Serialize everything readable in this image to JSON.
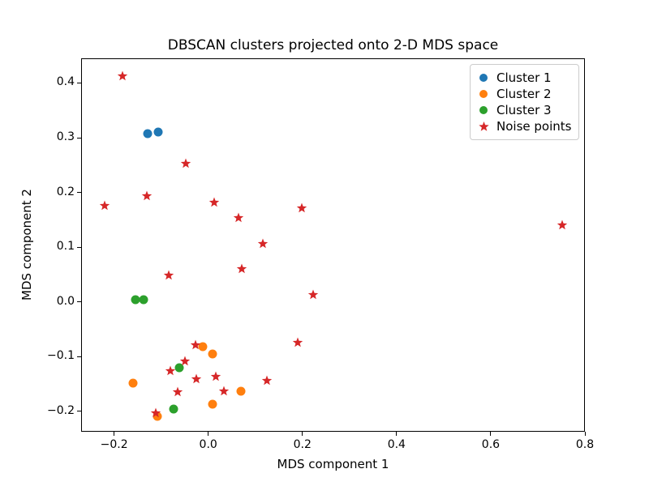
{
  "chart_data": {
    "type": "scatter",
    "title": "DBSCAN clusters projected onto 2-D MDS space",
    "xlabel": "MDS component 1",
    "ylabel": "MDS component 2",
    "xlim": [
      -0.27,
      0.8
    ],
    "ylim": [
      -0.237,
      0.445
    ],
    "xticks": [
      -0.2,
      0.0,
      0.2,
      0.4,
      0.6,
      0.8
    ],
    "yticks": [
      -0.2,
      -0.1,
      0.0,
      0.1,
      0.2,
      0.3,
      0.4
    ],
    "grid": false,
    "legend_position": "upper right",
    "series": [
      {
        "name": "Cluster 1",
        "marker": "circle",
        "color": "#1f77b4",
        "points": [
          [
            -0.131,
            0.309
          ],
          [
            -0.108,
            0.312
          ]
        ]
      },
      {
        "name": "Cluster 2",
        "marker": "circle",
        "color": "#ff7f0e",
        "points": [
          [
            -0.014,
            -0.08
          ],
          [
            0.008,
            -0.094
          ],
          [
            -0.162,
            -0.147
          ],
          [
            0.068,
            -0.162
          ],
          [
            0.008,
            -0.185
          ],
          [
            -0.11,
            -0.207
          ]
        ]
      },
      {
        "name": "Cluster 3",
        "marker": "circle",
        "color": "#2ca02c",
        "points": [
          [
            -0.157,
            0.005
          ],
          [
            -0.139,
            0.006
          ],
          [
            -0.063,
            -0.119
          ],
          [
            -0.075,
            -0.194
          ]
        ]
      },
      {
        "name": "Noise points",
        "marker": "star",
        "color": "#d62728",
        "points": [
          [
            -0.183,
            0.412
          ],
          [
            -0.221,
            0.176
          ],
          [
            -0.132,
            0.194
          ],
          [
            -0.049,
            0.253
          ],
          [
            0.01,
            0.181
          ],
          [
            0.063,
            0.154
          ],
          [
            0.197,
            0.172
          ],
          [
            0.114,
            0.106
          ],
          [
            0.07,
            0.06
          ],
          [
            -0.085,
            0.048
          ],
          [
            0.221,
            0.013
          ],
          [
            0.75,
            0.14
          ],
          [
            0.189,
            -0.075
          ],
          [
            -0.028,
            -0.078
          ],
          [
            -0.051,
            -0.109
          ],
          [
            -0.082,
            -0.126
          ],
          [
            -0.027,
            -0.141
          ],
          [
            0.015,
            -0.136
          ],
          [
            0.032,
            -0.163
          ],
          [
            -0.066,
            -0.165
          ],
          [
            0.122,
            -0.144
          ],
          [
            -0.113,
            -0.203
          ]
        ]
      }
    ]
  }
}
